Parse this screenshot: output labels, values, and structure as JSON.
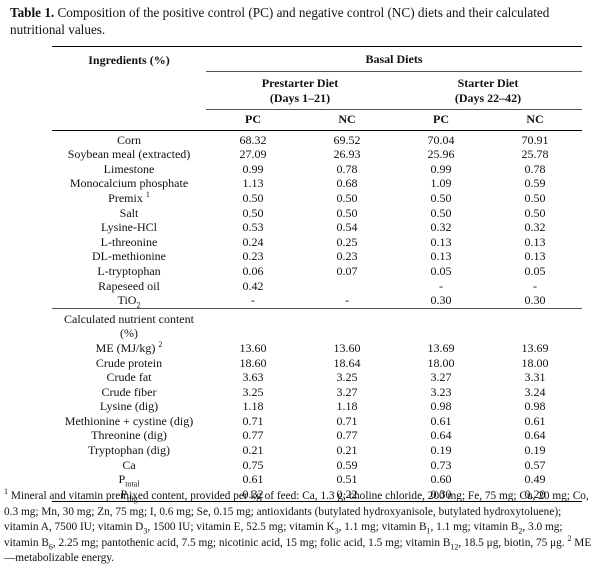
{
  "caption": {
    "lead": "Table 1.",
    "text": "Composition of the positive control (PC) and negative control (NC) diets and their calculated nutritional values."
  },
  "header": {
    "ingredients": "Ingredients (%)",
    "basal": "Basal Diets",
    "prestarter": "Prestarter Diet",
    "prestarter_days": "(Days 1–21)",
    "starter": "Starter Diet",
    "starter_days": "(Days 22–42)",
    "pc": "PC",
    "nc": "NC"
  },
  "ingredients": [
    {
      "name": "Corn",
      "vals": [
        "68.32",
        "69.52",
        "70.04",
        "70.91"
      ]
    },
    {
      "name": "Soybean meal (extracted)",
      "vals": [
        "27.09",
        "26.93",
        "25.96",
        "25.78"
      ]
    },
    {
      "name": "Limestone",
      "vals": [
        "0.99",
        "0.78",
        "0.99",
        "0.78"
      ]
    },
    {
      "name": "Monocalcium phosphate",
      "vals": [
        "1.13",
        "0.68",
        "1.09",
        "0.59"
      ]
    },
    {
      "name": "Premix",
      "sup": "1",
      "vals": [
        "0.50",
        "0.50",
        "0.50",
        "0.50"
      ]
    },
    {
      "name": "Salt",
      "vals": [
        "0.50",
        "0.50",
        "0.50",
        "0.50"
      ]
    },
    {
      "name": "Lysine-HCl",
      "vals": [
        "0.53",
        "0.54",
        "0.32",
        "0.32"
      ]
    },
    {
      "name": "L-threonine",
      "vals": [
        "0.24",
        "0.25",
        "0.13",
        "0.13"
      ]
    },
    {
      "name": "DL-methionine",
      "vals": [
        "0.23",
        "0.23",
        "0.13",
        "0.13"
      ]
    },
    {
      "name": "L-tryptophan",
      "vals": [
        "0.06",
        "0.07",
        "0.05",
        "0.05"
      ]
    },
    {
      "name": "Rapeseed oil",
      "vals": [
        "0.42",
        "",
        "-",
        "-"
      ]
    },
    {
      "name": "TiO",
      "sub": "2",
      "vals": [
        "-",
        "-",
        "0.30",
        "0.30"
      ]
    }
  ],
  "nutrient_header": {
    "line1": "Calculated nutrient content",
    "line2": "(%)"
  },
  "nutrients": [
    {
      "name": "ME (MJ/kg)",
      "sup": "2",
      "vals": [
        "13.60",
        "13.60",
        "13.69",
        "13.69"
      ]
    },
    {
      "name": "Crude protein",
      "vals": [
        "18.60",
        "18.64",
        "18.00",
        "18.00"
      ]
    },
    {
      "name": "Crude fat",
      "vals": [
        "3.63",
        "3.25",
        "3.27",
        "3.31"
      ]
    },
    {
      "name": "Crude fiber",
      "vals": [
        "3.25",
        "3.27",
        "3.23",
        "3.24"
      ]
    },
    {
      "name": "Lysine (dig)",
      "vals": [
        "1.18",
        "1.18",
        "0.98",
        "0.98"
      ]
    },
    {
      "name": "Methionine + cystine (dig)",
      "vals": [
        "0.71",
        "0.71",
        "0.61",
        "0.61"
      ]
    },
    {
      "name": "Threonine (dig)",
      "vals": [
        "0.77",
        "0.77",
        "0.64",
        "0.64"
      ]
    },
    {
      "name": "Tryptophan (dig)",
      "vals": [
        "0.21",
        "0.21",
        "0.19",
        "0.19"
      ]
    },
    {
      "name": "Ca",
      "vals": [
        "0.75",
        "0.59",
        "0.73",
        "0.57"
      ]
    },
    {
      "name": "P",
      "sub": "total",
      "vals": [
        "0.61",
        "0.51",
        "0.60",
        "0.49"
      ]
    },
    {
      "name": "P",
      "sub": "dig",
      "vals": [
        "0.32",
        "0.22",
        "0.30",
        "0.20"
      ]
    }
  ],
  "footnote": {
    "m1": "1",
    "s1": " Mineral and vitamin premixed content, provided per kg of feed: Ca, 1.3 g; choline chloride, 200 mg; Fe, 75 mg; Cu, 20 mg; Co, 0.3 mg; Mn, 30 mg; Zn, 75 mg; I, 0.6 mg; Se, 0.15 mg; antioxidants (butylated hydroxyanisole, butylated hydroxytoluene); vitamin A, 7500 IU; vitamin D",
    "b1": "3",
    "s2": ", 1500 IU; vitamin E, 52.5 mg; vitamin K",
    "b2": "3",
    "s3": ", 1.1 mg; vitamin B",
    "b3": "1",
    "s4": ", 1.1 mg; vitamin B",
    "b4": "2",
    "s5": ", 3.0 mg; vitamin B",
    "b5": "6",
    "s6": ", 2.25 mg; pantothenic acid, 7.5 mg; nicotinic acid, 15 mg; folic acid, 1.5 mg; vitamin B",
    "b6": "12",
    "s7": ", 18.5 μg, biotin, 75 μg.",
    "m2": "2",
    "s8": " ME—metabolizable energy."
  }
}
